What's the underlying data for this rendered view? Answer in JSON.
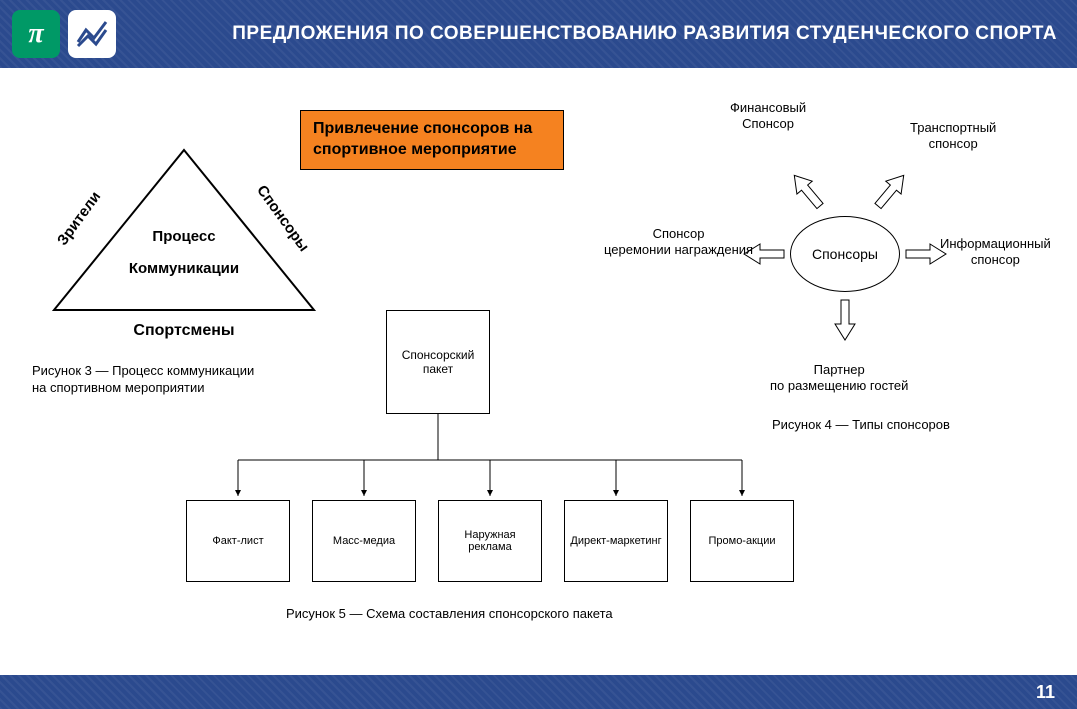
{
  "header": {
    "title": "ПРЕДЛОЖЕНИЯ ПО СОВЕРШЕНСТВОВАНИЮ РАЗВИТИЯ СТУДЕНЧЕСКОГО СПОРТА",
    "bg_color": "#2b4a8e",
    "logo_pi": "π",
    "logo_pi_bg": "#009966"
  },
  "page_number": "11",
  "orange_box": {
    "text": "Привлечение спонсоров на спортивное мероприятие",
    "bg": "#f58220",
    "border": "#000000"
  },
  "triangle": {
    "left_label": "Зрители",
    "right_label": "Спонсоры",
    "center1": "Процесс",
    "center2": "Коммуникации",
    "bottom": "Спортсмены",
    "caption": "Рисунок 3 — Процесс коммуникации на спортивном мероприятии",
    "stroke": "#000000"
  },
  "radial": {
    "center": "Спонсоры",
    "items": [
      {
        "label": "Финансовый\nСпонсор"
      },
      {
        "label": "Транспортный\nспонсор"
      },
      {
        "label": "Информационный\nспонсор"
      },
      {
        "label": "Партнер\nпо размещению гостей"
      },
      {
        "label": "Спонсор\nцеремонии награждения"
      }
    ],
    "caption": "Рисунок 4 — Типы спонсоров",
    "stroke": "#000000"
  },
  "tree": {
    "root": "Спонсорский пакет",
    "leaves": [
      "Факт-лист",
      "Масс-медиа",
      "Наружная реклама",
      "Директ-маркетинг",
      "Промо-акции"
    ],
    "leaf_positions_x": [
      0,
      126,
      252,
      378,
      504
    ],
    "caption": "Рисунок 5 — Схема составления спонсорского пакета",
    "stroke": "#000000"
  },
  "colors": {
    "page_bg": "#ffffff",
    "bar_bg": "#2b4a8e",
    "text": "#000000"
  }
}
